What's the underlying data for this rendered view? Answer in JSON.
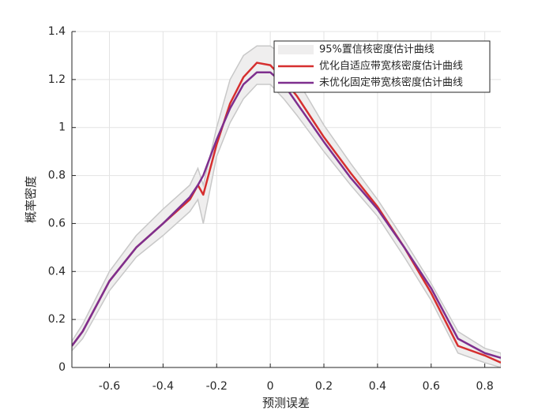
{
  "chart_data": {
    "type": "line",
    "xlabel": "预测误差",
    "ylabel": "概率密度",
    "x": [
      -0.74,
      -0.7,
      -0.6,
      -0.5,
      -0.4,
      -0.3,
      -0.27,
      -0.25,
      -0.2,
      -0.15,
      -0.1,
      -0.05,
      0,
      0.05,
      0.1,
      0.2,
      0.3,
      0.4,
      0.5,
      0.6,
      0.7,
      0.8,
      0.86
    ],
    "band": {
      "name": "95%置信核密度估计曲线",
      "color": "#efeeee",
      "edgecolor": "#c8c8c8",
      "upper": [
        0.11,
        0.18,
        0.4,
        0.55,
        0.66,
        0.76,
        0.83,
        0.76,
        1.0,
        1.2,
        1.3,
        1.34,
        1.34,
        1.3,
        1.2,
        1.01,
        0.85,
        0.7,
        0.53,
        0.35,
        0.15,
        0.08,
        0.06
      ],
      "lower": [
        0.07,
        0.12,
        0.32,
        0.46,
        0.55,
        0.65,
        0.7,
        0.6,
        0.88,
        1.02,
        1.12,
        1.18,
        1.18,
        1.12,
        1.05,
        0.9,
        0.76,
        0.63,
        0.46,
        0.28,
        0.06,
        0.02,
        0.0
      ]
    },
    "series": [
      {
        "name": "优化自适应带宽核密度估计曲线",
        "color": "#d62f2f",
        "values": [
          0.09,
          0.15,
          0.36,
          0.5,
          0.6,
          0.7,
          0.76,
          0.72,
          0.93,
          1.1,
          1.21,
          1.27,
          1.26,
          1.2,
          1.13,
          0.96,
          0.81,
          0.67,
          0.5,
          0.31,
          0.09,
          0.05,
          0.02
        ]
      },
      {
        "name": "未优化固定带宽核密度估计曲线",
        "color": "#7e2f8e",
        "values": [
          0.09,
          0.15,
          0.36,
          0.5,
          0.6,
          0.71,
          0.76,
          0.8,
          0.95,
          1.08,
          1.18,
          1.23,
          1.23,
          1.18,
          1.1,
          0.94,
          0.79,
          0.66,
          0.5,
          0.33,
          0.12,
          0.06,
          0.04
        ]
      }
    ],
    "xlim": [
      -0.74,
      0.86
    ],
    "ylim": [
      0,
      1.4
    ],
    "xticks": [
      -0.6,
      -0.4,
      -0.2,
      0,
      0.2,
      0.4,
      0.6,
      0.8
    ],
    "yticks": [
      0,
      0.2,
      0.4,
      0.6,
      0.8,
      1,
      1.2,
      1.4
    ],
    "grid": true,
    "legend": "upper right"
  }
}
